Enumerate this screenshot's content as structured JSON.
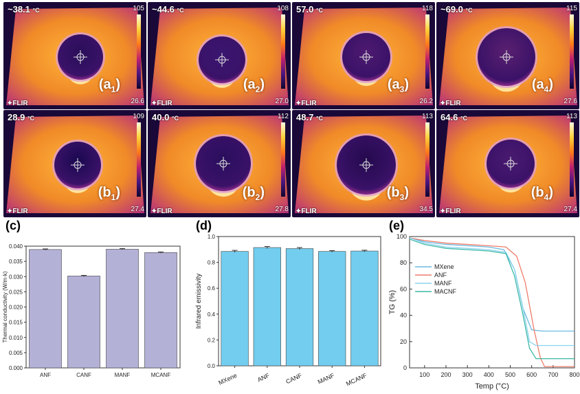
{
  "thermal_panels": [
    {
      "id": "a1",
      "letter": "a",
      "sub": "1",
      "temp": "~38.1",
      "unit": "°C",
      "max": "105",
      "min": "26.6",
      "brand": "FLIR"
    },
    {
      "id": "a2",
      "letter": "a",
      "sub": "2",
      "temp": "~44.6",
      "unit": "°C",
      "max": "108",
      "min": "27.0",
      "brand": "FLIR"
    },
    {
      "id": "a3",
      "letter": "a",
      "sub": "3",
      "temp": "57.0",
      "unit": "°C",
      "max": "118",
      "min": "26.2",
      "brand": "FLIR"
    },
    {
      "id": "a4",
      "letter": "a",
      "sub": "4",
      "temp": "~69.0",
      "unit": "°C",
      "max": "115",
      "min": "27.6",
      "brand": "FLIR"
    },
    {
      "id": "b1",
      "letter": "b",
      "sub": "1",
      "temp": "28.9",
      "unit": "°C",
      "max": "109",
      "min": "27.4",
      "brand": "FLIR"
    },
    {
      "id": "b2",
      "letter": "b",
      "sub": "2",
      "temp": "40.0",
      "unit": "°C",
      "max": "112",
      "min": "27.8",
      "brand": "FLIR"
    },
    {
      "id": "b3",
      "letter": "b",
      "sub": "3",
      "temp": "48.7",
      "unit": "°C",
      "max": "113",
      "min": "34.5",
      "brand": "FLIR"
    },
    {
      "id": "b4",
      "letter": "b",
      "sub": "4",
      "temp": "64.6",
      "unit": "°C",
      "max": "113",
      "min": "27.4",
      "brand": "FLIR"
    }
  ],
  "chart_data": [
    {
      "panel": "(c)",
      "type": "bar",
      "categories": [
        "ANF",
        "CANF",
        "MANF",
        "MCANF"
      ],
      "values": [
        0.0389,
        0.0302,
        0.039,
        0.0379
      ],
      "errors": [
        0.0002,
        0.0002,
        0.0002,
        0.0002
      ],
      "ylabel": "Thermal conductivity (W/m·k)",
      "ylim": [
        0,
        0.04
      ],
      "yticks": [
        "0.000",
        "0.005",
        "0.010",
        "0.015",
        "0.020",
        "0.025",
        "0.030",
        "0.035",
        "0.040"
      ],
      "color": "#b3b1d6"
    },
    {
      "panel": "(d)",
      "type": "bar",
      "categories": [
        "MXene",
        "ANF",
        "CANF",
        "MANF",
        "MCANF"
      ],
      "values": [
        0.885,
        0.915,
        0.907,
        0.885,
        0.888
      ],
      "errors": [
        0.008,
        0.008,
        0.008,
        0.006,
        0.006
      ],
      "ylabel": "Infrared emissivity",
      "ylim": [
        0,
        1.0
      ],
      "yticks": [
        "0.0",
        "0.2",
        "0.4",
        "0.6",
        "0.8",
        "1.0"
      ],
      "color": "#72cdee"
    },
    {
      "panel": "(e)",
      "type": "line",
      "xlabel": "Temp (°C)",
      "ylabel": "TG (%)",
      "xlim": [
        30,
        800
      ],
      "ylim": [
        0,
        100
      ],
      "xticks": [
        "100",
        "200",
        "300",
        "400",
        "500",
        "600",
        "700",
        "800"
      ],
      "yticks": [
        "0",
        "20",
        "40",
        "60",
        "80",
        "100"
      ],
      "legend": "left",
      "series": [
        {
          "name": "MXene",
          "color": "#6ab8e0",
          "x": [
            30,
            100,
            200,
            300,
            400,
            470,
            520,
            560,
            600,
            650,
            800
          ],
          "y": [
            99,
            96,
            94,
            93,
            92,
            90,
            75,
            45,
            29,
            28,
            28
          ]
        },
        {
          "name": "ANF",
          "color": "#ee7c6a",
          "x": [
            30,
            100,
            200,
            300,
            400,
            480,
            530,
            570,
            610,
            640,
            660,
            800
          ],
          "y": [
            99,
            97,
            95,
            94,
            93,
            92,
            85,
            65,
            30,
            8,
            1,
            1
          ]
        },
        {
          "name": "MANF",
          "color": "#8ad3ee",
          "x": [
            30,
            100,
            200,
            300,
            400,
            480,
            520,
            560,
            590,
            620,
            800
          ],
          "y": [
            99,
            95,
            92,
            91,
            90,
            88,
            75,
            45,
            20,
            17,
            17
          ]
        },
        {
          "name": "MACNF",
          "color": "#3ab8a6",
          "x": [
            30,
            100,
            200,
            300,
            400,
            480,
            520,
            560,
            590,
            620,
            800
          ],
          "y": [
            98,
            94,
            91,
            90,
            89,
            87,
            70,
            40,
            15,
            7,
            7
          ]
        }
      ]
    }
  ]
}
